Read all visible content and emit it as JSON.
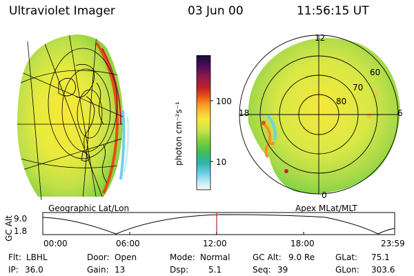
{
  "header": {
    "instrument": "Ultraviolet Imager",
    "date": "03 Jun 00",
    "time": "11:56:15 UT"
  },
  "colorbar": {
    "unit_label": "photon cm⁻²s⁻¹",
    "ticks": [
      "100",
      "10"
    ],
    "colors": [
      "#1a0d33",
      "#4b0b5b",
      "#8e1a4a",
      "#c0202a",
      "#e84c16",
      "#f7931e",
      "#fbc531",
      "#f6e83a",
      "#c7e34a",
      "#7fcf3a",
      "#3fbf57",
      "#2fb4a8",
      "#6fd0e8",
      "#c9eef7",
      "#f5f5f5"
    ]
  },
  "left_panel": {
    "label": "Geographic Lat/Lon"
  },
  "right_panel": {
    "label": "Apex MLat/MLT",
    "mlt_labels": [
      "12",
      "18",
      "6",
      "0"
    ],
    "lat_labels": [
      "60",
      "70",
      "80"
    ]
  },
  "altitude_plot": {
    "ylabel": "GC Alt",
    "yticks": [
      "9.0",
      "1.8"
    ],
    "xticks": [
      "00:00",
      "06:00",
      "12:00",
      "18:00",
      "23:59"
    ]
  },
  "info": {
    "row1": [
      {
        "k": "Flt:",
        "v": "LBHL"
      },
      {
        "k": "Door:",
        "v": "Open"
      },
      {
        "k": "Mode:",
        "v": "Normal"
      },
      {
        "k": "GC Alt:",
        "v": "9.0 Re"
      },
      {
        "k": "GLat:",
        "v": "75.1"
      }
    ],
    "row2": [
      {
        "k": "IP:",
        "v": "36.0"
      },
      {
        "k": "Gain:",
        "v": "13"
      },
      {
        "k": "Dsp:",
        "v": "5.1"
      },
      {
        "k": "Seq:",
        "v": "39"
      },
      {
        "k": "GLon:",
        "v": "303.6"
      }
    ]
  }
}
